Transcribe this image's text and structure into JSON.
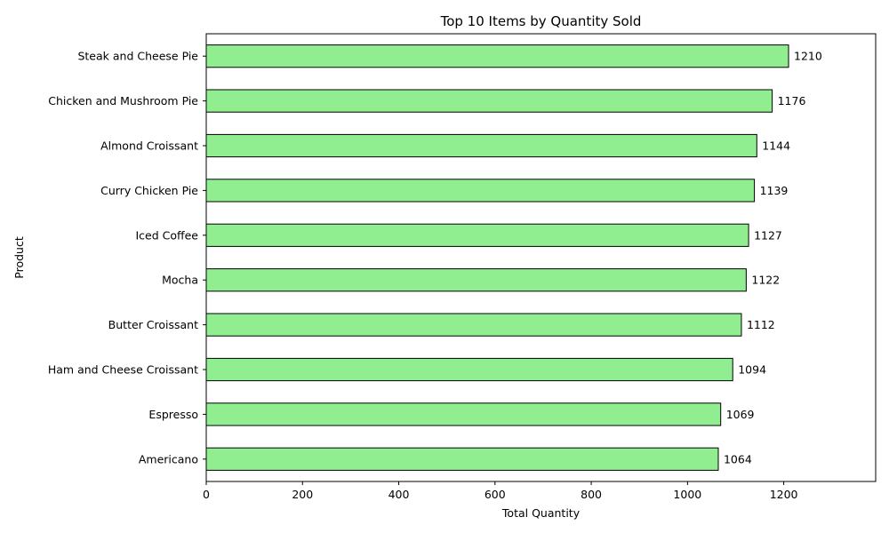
{
  "chart_data": {
    "type": "bar",
    "orientation": "horizontal",
    "title": "Top 10 Items by Quantity Sold",
    "xlabel": "Total Quantity",
    "ylabel": "Product",
    "categories": [
      "Steak and Cheese Pie",
      "Chicken and Mushroom Pie",
      "Almond Croissant",
      "Curry Chicken Pie",
      "Iced Coffee",
      "Mocha",
      "Butter Croissant",
      "Ham and Cheese Croissant",
      "Espresso",
      "Americano"
    ],
    "values": [
      1210,
      1176,
      1144,
      1139,
      1127,
      1122,
      1112,
      1094,
      1069,
      1064
    ],
    "xlim": [
      0,
      1391
    ],
    "xticks": [
      0,
      200,
      400,
      600,
      800,
      1000,
      1200
    ],
    "grid": false,
    "bar_color": "#90ee90",
    "bar_edge_color": "#000000",
    "show_data_labels": true
  }
}
